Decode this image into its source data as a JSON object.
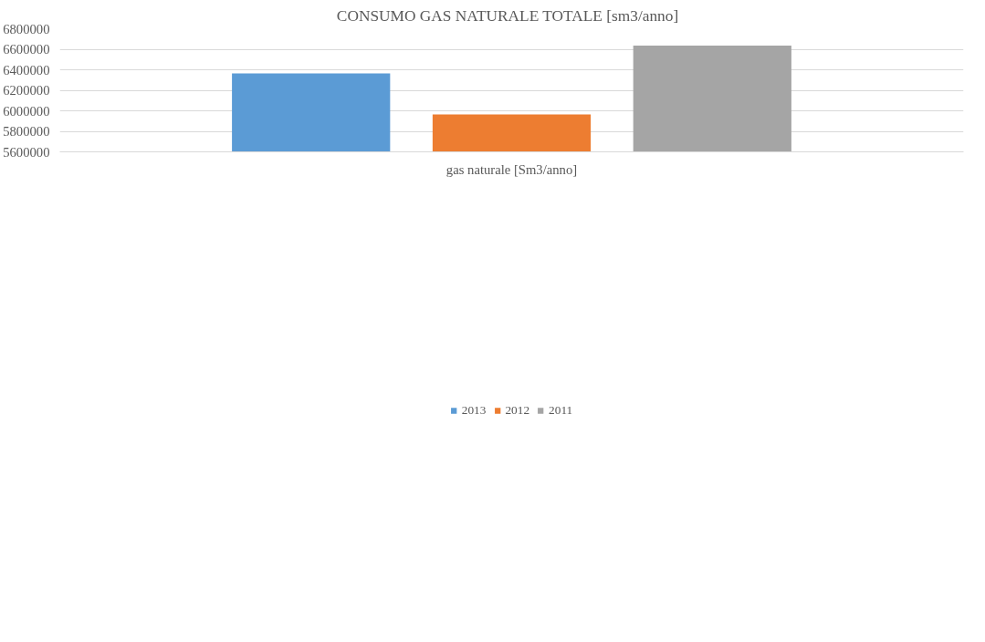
{
  "chart_data": {
    "type": "bar",
    "title": "CONSUMO GAS NATURALE  TOTALE  [sm3/anno]",
    "categories": [
      "gas naturale [Sm3/anno]"
    ],
    "series": [
      {
        "name": "2013",
        "color": "#5b9bd5",
        "values": [
          6365000
        ]
      },
      {
        "name": "2012",
        "color": "#ed7d31",
        "values": [
          5965000
        ]
      },
      {
        "name": "2011",
        "color": "#a5a5a5",
        "values": [
          6635000
        ]
      }
    ],
    "ylim": [
      5600000,
      6800000
    ],
    "yticks": [
      5600000,
      5800000,
      6000000,
      6200000,
      6400000,
      6600000,
      6800000
    ],
    "grid": "y",
    "legend": "bottom"
  }
}
